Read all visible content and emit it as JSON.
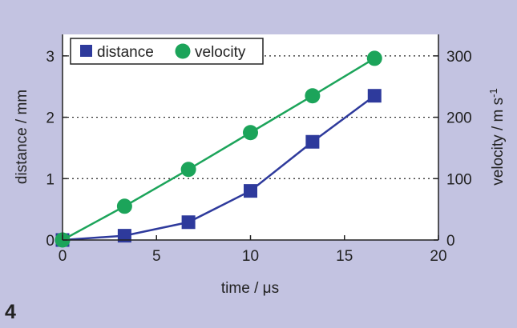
{
  "figure_number": "4",
  "colors": {
    "background": "#c3c3e1",
    "plot_area": "#ffffff",
    "distance": "#2e3a9c",
    "velocity": "#1ca45a",
    "axis": "#222222"
  },
  "chart_data": {
    "type": "line",
    "title": "",
    "xlabel": "time / μs",
    "ylabel_left": "distance / mm",
    "ylabel_right_main": "velocity / m s",
    "ylabel_right_sup": "-1",
    "xlim": [
      0,
      20
    ],
    "ylim_left": [
      0,
      3.35
    ],
    "ylim_right": [
      0,
      335
    ],
    "xticks": [
      0,
      5,
      10,
      15,
      20
    ],
    "yticks_left": [
      0,
      1,
      2,
      3
    ],
    "yticks_right": [
      0,
      100,
      200,
      300
    ],
    "grid": "horizontal dotted at 1, 2, 3",
    "legend_position": "top-left",
    "series": [
      {
        "name": "distance",
        "axis": "left",
        "marker": "square",
        "x": [
          0,
          3.3,
          6.7,
          10,
          13.3,
          16.6
        ],
        "y": [
          0,
          0.07,
          0.29,
          0.8,
          1.6,
          2.35
        ]
      },
      {
        "name": "velocity",
        "axis": "right",
        "marker": "circle",
        "x": [
          0,
          3.3,
          6.7,
          10,
          13.3,
          16.6
        ],
        "y": [
          0,
          55,
          115,
          175,
          235,
          296
        ]
      }
    ]
  }
}
